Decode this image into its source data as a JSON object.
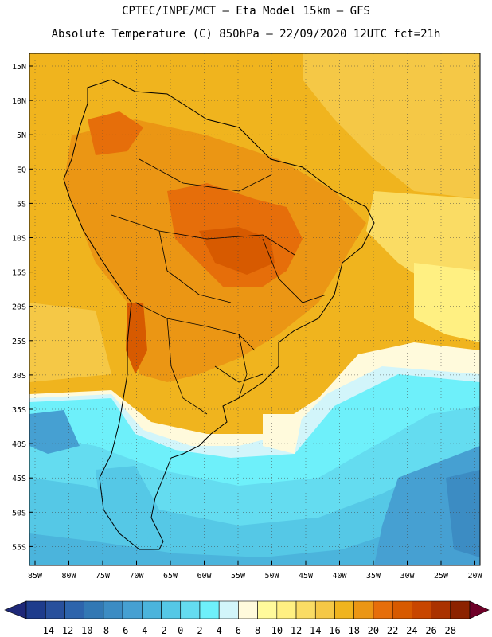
{
  "header": {
    "line1": "CPTEC/INPE/MCT –  Eta Model 15km – GFS",
    "line2": "Absolute Temperature (C) 850hPa – 22/09/2020 12UTC fct=21h"
  },
  "lat_labels": [
    "15N",
    "10N",
    "5N",
    "EQ",
    "5S",
    "10S",
    "15S",
    "20S",
    "25S",
    "30S",
    "35S",
    "40S",
    "45S",
    "50S",
    "55S"
  ],
  "lon_labels": [
    "85W",
    "80W",
    "75W",
    "70W",
    "65W",
    "60W",
    "55W",
    "50W",
    "45W",
    "40W",
    "35W",
    "30W",
    "25W",
    "20W"
  ],
  "colorbar": {
    "labels": [
      "-14",
      "-12",
      "-10",
      "-8",
      "-6",
      "-4",
      "-2",
      "0",
      "2",
      "4",
      "6",
      "8",
      "10",
      "12",
      "14",
      "16",
      "18",
      "20",
      "22",
      "24",
      "26",
      "28"
    ],
    "colors": [
      "#1e3c8c",
      "#28509c",
      "#2d64ac",
      "#3278b4",
      "#3c8cc3",
      "#46a0d2",
      "#4bb4dc",
      "#55c8e6",
      "#64dcf0",
      "#6ef0fa",
      "#d2f5fa",
      "#fffadc",
      "#fffa9b",
      "#fff082",
      "#fadc64",
      "#f5c846",
      "#f0b41e",
      "#eb9614",
      "#e66e0a",
      "#d75a00",
      "#c84600",
      "#aa3200",
      "#8c2300"
    ],
    "under_color": "#1e2878",
    "over_color": "#6e0028"
  }
}
